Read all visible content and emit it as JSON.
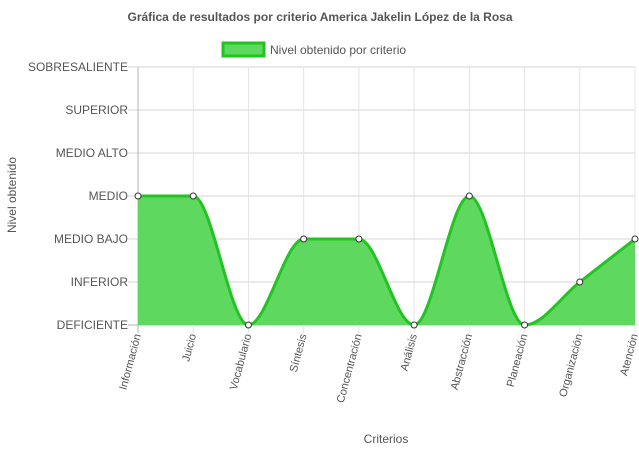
{
  "chart_data": {
    "type": "area",
    "title": "Gráfica de resultados por criterio America Jakelin López de la Rosa",
    "xlabel": "Criterios",
    "ylabel": "Nivel obtenido",
    "legend_position": "top",
    "grid": true,
    "categories": [
      "Información",
      "Juicio",
      "Vocabulario",
      "Síntesis",
      "Concentración",
      "Análisis",
      "Abstracción",
      "Planeación",
      "Organización",
      "Atención"
    ],
    "y_levels": [
      "DEFICIENTE",
      "INFERIOR",
      "MEDIO BAJO",
      "MEDIO",
      "MEDIO ALTO",
      "SUPERIOR",
      "SOBRESALIENTE"
    ],
    "ylim": [
      0,
      6
    ],
    "series": [
      {
        "name": "Nivel obtenido por criterio",
        "values": [
          3,
          3,
          0,
          2,
          2,
          0,
          3,
          0,
          1,
          2
        ],
        "color": "#22c322",
        "fill": "#5ed85e"
      }
    ]
  }
}
